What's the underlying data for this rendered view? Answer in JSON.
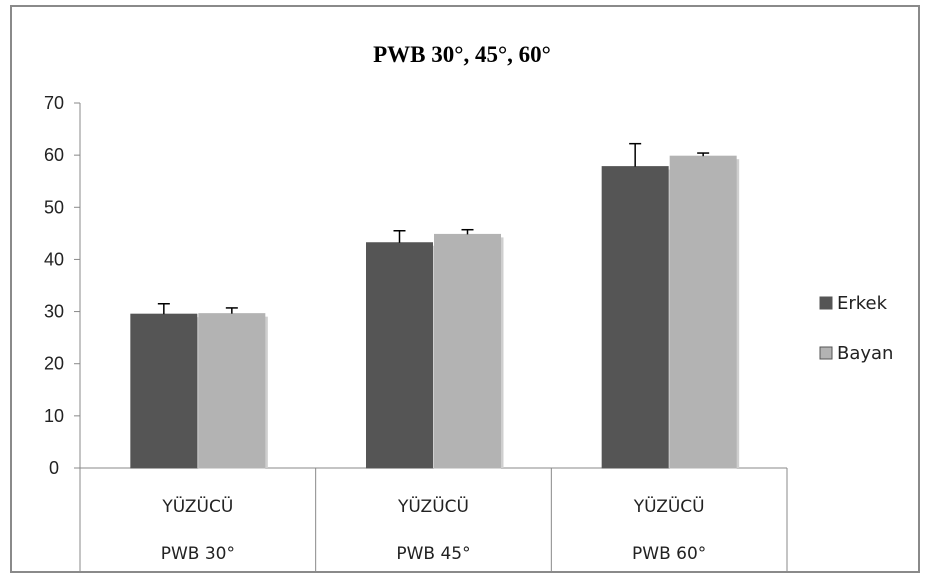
{
  "chart_data": {
    "type": "bar",
    "title": "PWB  30°, 45°, 60°",
    "categories": [
      {
        "line1": "YÜZÜCÜ",
        "line2": "PWB 30°"
      },
      {
        "line1": "YÜZÜCÜ",
        "line2": "PWB 45°"
      },
      {
        "line1": "YÜZÜCÜ",
        "line2": "PWB 60°"
      }
    ],
    "series": [
      {
        "name": "Erkek",
        "color": "#555555",
        "values": [
          29.5,
          43.2,
          57.8
        ],
        "errors": [
          2.0,
          2.3,
          4.4
        ]
      },
      {
        "name": "Bayan",
        "color": "#b3b3b3",
        "values": [
          29.6,
          44.8,
          59.8
        ],
        "errors": [
          1.1,
          0.9,
          0.6
        ]
      }
    ],
    "ylim": [
      0,
      70
    ],
    "yticks": [
      0,
      10,
      20,
      30,
      40,
      50,
      60,
      70
    ],
    "xlabel": "",
    "ylabel": "",
    "grid": false,
    "legend_position": "right"
  }
}
